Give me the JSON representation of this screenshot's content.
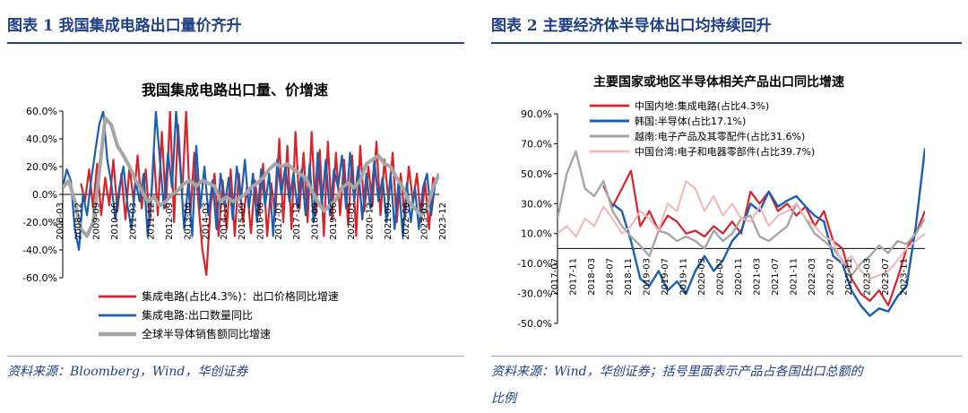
{
  "figure1": {
    "heading": "图表 1   我国集成电路出口量价齐升",
    "source": "资料来源：Bloomberg，Wind，华创证券"
  },
  "figure2": {
    "heading": "图表 2   主要经济体半导体出口均持续回升",
    "source_line1": "资料来源：Wind，华创证券；括号里面表示产品占各国出口总额的",
    "source_line2": "比例"
  },
  "chart_data": [
    {
      "type": "line",
      "title": "我国集成电路出口量、价增速",
      "xlabel": "",
      "ylabel": "",
      "ylim": [
        -60,
        60
      ],
      "yticks": [
        "60.0%",
        "40.0%",
        "20.0%",
        "0.0%",
        "-20.0%",
        "-40.0%",
        "-60.0%"
      ],
      "ytick_values": [
        60,
        40,
        20,
        0,
        -20,
        -40,
        -60
      ],
      "xlim": [
        0,
        186
      ],
      "xticks": [
        "2008-03",
        "2008-12",
        "2009-09",
        "2010-06",
        "2011-03",
        "2011-12",
        "2012-09",
        "2013-06",
        "2014-03",
        "2014-12",
        "2015-09",
        "2016-06",
        "2017-03",
        "2017-12",
        "2018-09",
        "2019-06",
        "2020-03",
        "2020-12",
        "2021-09",
        "2022-06",
        "2023-03",
        "2023-12"
      ],
      "xtick_values": [
        0,
        9,
        18,
        27,
        36,
        45,
        54,
        63,
        72,
        81,
        90,
        99,
        108,
        117,
        126,
        135,
        144,
        153,
        162,
        171,
        180,
        189
      ],
      "series": [
        {
          "name": "集成电路(占比4.3%)：出口价格同比增速",
          "color": "#d9232c",
          "x": [
            9,
            11,
            13,
            15,
            17,
            19,
            21,
            23,
            25,
            27,
            29,
            31,
            33,
            35,
            37,
            39,
            41,
            43,
            45,
            47,
            49,
            51,
            53,
            55,
            57,
            59,
            61,
            63,
            65,
            67,
            69,
            71,
            73,
            75,
            77,
            79,
            81,
            83,
            85,
            87,
            89,
            91,
            93,
            95,
            97,
            99,
            101,
            103,
            105,
            107,
            109,
            111,
            113,
            115,
            117,
            119,
            121,
            123,
            125,
            127,
            129,
            131,
            133,
            135,
            137,
            139,
            141,
            143,
            145,
            147,
            149,
            151,
            153,
            155,
            157,
            159,
            161,
            163,
            165,
            167,
            169,
            171,
            173,
            175,
            177,
            179,
            181,
            183,
            185
          ],
          "y": [
            8,
            -5,
            18,
            -10,
            22,
            -15,
            12,
            -8,
            25,
            -12,
            15,
            -18,
            20,
            -5,
            28,
            -10,
            18,
            -22,
            30,
            -15,
            45,
            -10,
            60,
            -20,
            50,
            0,
            60,
            -15,
            30,
            -5,
            -40,
            -58,
            -10,
            15,
            -30,
            10,
            -25,
            18,
            -30,
            15,
            -20,
            5,
            -28,
            10,
            -15,
            22,
            -30,
            8,
            -15,
            40,
            -20,
            35,
            -25,
            45,
            -10,
            30,
            -20,
            45,
            -15,
            32,
            -30,
            38,
            -18,
            30,
            -15,
            25,
            -22,
            28,
            -30,
            35,
            -12,
            20,
            -8,
            38,
            -15,
            25,
            -5,
            30,
            -20,
            15,
            -18,
            20,
            -5,
            15,
            -20,
            10,
            -25,
            12,
            8
          ]
        },
        {
          "name": "集成电路:出口数量同比",
          "color": "#1b5fb0",
          "x": [
            0,
            2,
            4,
            6,
            8,
            10,
            12,
            14,
            16,
            18,
            20,
            22,
            24,
            26,
            28,
            30,
            32,
            34,
            36,
            38,
            40,
            42,
            44,
            46,
            48,
            50,
            52,
            54,
            56,
            58,
            60,
            62,
            64,
            66,
            68,
            70,
            72,
            74,
            76,
            78,
            80,
            82,
            84,
            86,
            88,
            90,
            92,
            94,
            96,
            98,
            100,
            102,
            104,
            106,
            108,
            110,
            112,
            114,
            116,
            118,
            120,
            122,
            124,
            126,
            128,
            130,
            132,
            134,
            136,
            138,
            140,
            142,
            144,
            146,
            148,
            150,
            152,
            154,
            156,
            158,
            160,
            162,
            164,
            166,
            168,
            170,
            172,
            174,
            176,
            178,
            180,
            182,
            184,
            186
          ],
          "y": [
            5,
            18,
            10,
            -25,
            -40,
            0,
            -15,
            10,
            30,
            50,
            60,
            25,
            8,
            -18,
            5,
            20,
            -8,
            -25,
            10,
            -5,
            15,
            -30,
            5,
            60,
            25,
            -10,
            30,
            5,
            60,
            20,
            -25,
            8,
            -30,
            35,
            -10,
            20,
            -15,
            10,
            -25,
            15,
            -8,
            12,
            -18,
            20,
            -5,
            25,
            -10,
            15,
            -20,
            18,
            -8,
            15,
            -30,
            25,
            0,
            20,
            -5,
            15,
            -10,
            18,
            -15,
            22,
            -20,
            30,
            -8,
            25,
            -15,
            18,
            5,
            28,
            -10,
            30,
            -5,
            20,
            -18,
            15,
            -10,
            25,
            -5,
            12,
            -20,
            15,
            -25,
            10,
            -30,
            8,
            -20,
            5,
            -25,
            5,
            15,
            -15,
            8,
            15
          ]
        },
        {
          "name": "全球半导体销售额同比增速",
          "color": "#a6a6a6",
          "x": [
            0,
            3,
            6,
            9,
            12,
            15,
            18,
            21,
            24,
            27,
            30,
            33,
            36,
            39,
            42,
            45,
            48,
            51,
            54,
            57,
            60,
            63,
            66,
            69,
            72,
            75,
            78,
            81,
            84,
            87,
            90,
            93,
            96,
            99,
            102,
            105,
            108,
            111,
            114,
            117,
            120,
            123,
            126,
            129,
            132,
            135,
            138,
            141,
            144,
            147,
            150,
            153,
            156,
            159,
            162,
            165,
            168,
            171,
            174,
            177,
            180,
            183,
            186
          ],
          "y": [
            5,
            10,
            -5,
            -25,
            -30,
            -20,
            15,
            55,
            50,
            35,
            28,
            20,
            10,
            3,
            -5,
            -2,
            -8,
            -5,
            0,
            3,
            8,
            10,
            6,
            10,
            8,
            6,
            -5,
            -2,
            -5,
            -3,
            0,
            5,
            8,
            12,
            18,
            22,
            20,
            22,
            18,
            15,
            12,
            3,
            -5,
            -12,
            -8,
            -4,
            5,
            8,
            5,
            10,
            22,
            25,
            28,
            22,
            20,
            12,
            5,
            -5,
            -10,
            -15,
            -10,
            5,
            15
          ]
        }
      ]
    },
    {
      "type": "line",
      "title": "主要国家或地区半导体相关产品出口同比增速",
      "xlabel": "",
      "ylabel": "",
      "ylim": [
        -50,
        90
      ],
      "yticks": [
        "90.0%",
        "70.0%",
        "50.0%",
        "30.0%",
        "10.0%",
        "-10.0%",
        "-30.0%",
        "-50.0%"
      ],
      "ytick_values": [
        90,
        70,
        50,
        30,
        10,
        -10,
        -30,
        -50
      ],
      "xlim": [
        0,
        80
      ],
      "xticks": [
        "2017-07",
        "2017-11",
        "2018-03",
        "2018-07",
        "2018-11",
        "2019-03",
        "2019-07",
        "2019-11",
        "2020-03",
        "2020-07",
        "2020-11",
        "2021-03",
        "2021-07",
        "2021-11",
        "2022-03",
        "2022-07",
        "2022-11",
        "2023-03",
        "2023-07",
        "2023-11"
      ],
      "xtick_values": [
        0,
        4,
        8,
        12,
        16,
        20,
        24,
        28,
        32,
        36,
        40,
        44,
        48,
        52,
        56,
        60,
        64,
        68,
        72,
        76
      ],
      "series": [
        {
          "name": "中国内地:集成电路(占比4.3%)",
          "color": "#d9232c",
          "x": [
            10,
            12,
            14,
            16,
            18,
            20,
            22,
            24,
            26,
            28,
            30,
            32,
            34,
            36,
            38,
            40,
            42,
            44,
            46,
            48,
            50,
            52,
            54,
            56,
            58,
            60,
            62,
            64,
            66,
            68,
            70,
            72,
            74,
            76,
            78,
            80
          ],
          "y": [
            42,
            28,
            40,
            52,
            15,
            25,
            12,
            22,
            18,
            10,
            12,
            8,
            15,
            10,
            18,
            10,
            38,
            30,
            38,
            25,
            30,
            22,
            28,
            15,
            25,
            5,
            0,
            -20,
            -30,
            -35,
            -28,
            -38,
            -20,
            0,
            10,
            25
          ]
        },
        {
          "name": "韩国:半导体(占比17.1%)",
          "color": "#1b5fb0",
          "x": [
            12,
            14,
            16,
            18,
            20,
            22,
            24,
            26,
            28,
            30,
            32,
            34,
            36,
            38,
            40,
            42,
            44,
            46,
            48,
            50,
            52,
            54,
            56,
            58,
            60,
            62,
            64,
            66,
            68,
            70,
            72,
            74,
            76,
            78,
            80
          ],
          "y": [
            30,
            25,
            5,
            -20,
            -25,
            -15,
            -28,
            -22,
            -30,
            -15,
            -5,
            -15,
            -8,
            5,
            12,
            30,
            25,
            38,
            28,
            32,
            35,
            28,
            22,
            18,
            -5,
            -10,
            -28,
            -38,
            -45,
            -40,
            -42,
            -32,
            -25,
            15,
            67
          ]
        },
        {
          "name": "越南:电子产品及其零配件(占比31.6%)",
          "color": "#a6a6a6",
          "x": [
            0,
            2,
            4,
            6,
            8,
            10,
            12,
            14,
            16,
            18,
            20,
            22,
            24,
            26,
            28,
            30,
            32,
            34,
            36,
            38,
            40,
            42,
            44,
            46,
            48,
            50,
            52,
            54,
            56,
            58,
            60,
            62,
            64,
            66,
            68,
            70,
            72,
            74,
            76,
            78,
            80
          ],
          "y": [
            20,
            50,
            65,
            40,
            35,
            45,
            25,
            15,
            8,
            2,
            -5,
            12,
            10,
            5,
            8,
            5,
            0,
            12,
            5,
            10,
            20,
            22,
            8,
            5,
            10,
            15,
            30,
            20,
            10,
            5,
            0,
            -8,
            -18,
            -10,
            -5,
            2,
            -3,
            5,
            3,
            10,
            20
          ]
        },
        {
          "name": "中国台湾:电子和电器零部件(占比39.7%)",
          "color": "#f2b5b8",
          "x": [
            0,
            2,
            4,
            6,
            8,
            10,
            12,
            14,
            16,
            18,
            20,
            22,
            24,
            26,
            28,
            30,
            32,
            34,
            36,
            38,
            40,
            42,
            44,
            46,
            48,
            50,
            52,
            54,
            56,
            58,
            60,
            62,
            64,
            66,
            68,
            70,
            72,
            74,
            76,
            78,
            80
          ],
          "y": [
            10,
            15,
            8,
            20,
            15,
            28,
            20,
            10,
            15,
            25,
            20,
            12,
            30,
            25,
            45,
            40,
            25,
            35,
            22,
            30,
            20,
            18,
            28,
            15,
            22,
            25,
            30,
            20,
            15,
            8,
            5,
            -10,
            -5,
            -15,
            -20,
            -18,
            -15,
            -8,
            0,
            5,
            10
          ]
        }
      ]
    }
  ]
}
